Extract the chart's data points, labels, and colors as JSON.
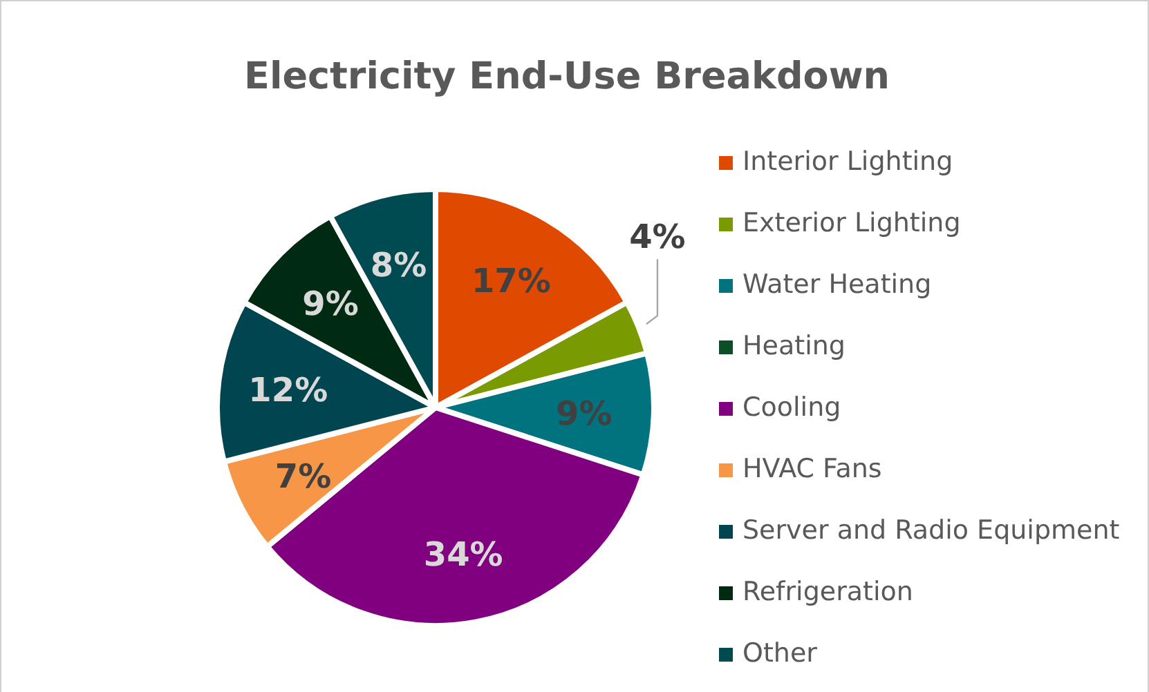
{
  "chart_data": {
    "type": "pie",
    "title": "Electricity End-Use Breakdown",
    "categories": [
      "Interior Lighting",
      "Exterior Lighting",
      "Water Heating",
      "Heating",
      "Cooling",
      "HVAC Fans",
      "Server and Radio Equipment",
      "Refrigeration",
      "Other"
    ],
    "values": [
      17,
      4,
      9,
      0,
      34,
      7,
      12,
      9,
      8
    ],
    "colors": [
      "#e04a00",
      "#7a9a01",
      "#00737f",
      "#0c4f26",
      "#800080",
      "#f79646",
      "#004550",
      "#002a12",
      "#004a52"
    ],
    "value_labels": [
      "17%",
      "4%",
      "9%",
      null,
      "34%",
      "7%",
      "12%",
      "9%",
      "8%"
    ],
    "legend": "right"
  }
}
